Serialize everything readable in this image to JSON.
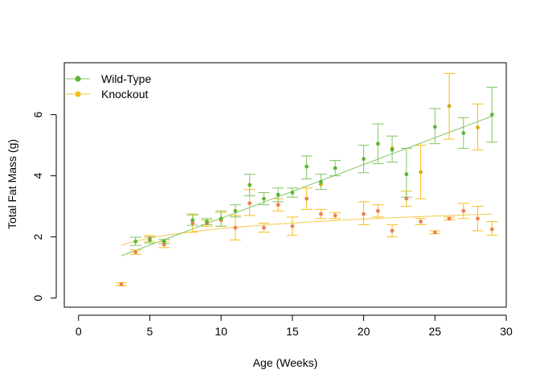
{
  "chart_data": {
    "type": "scatter",
    "title": "",
    "xlabel": "Age (Weeks)",
    "ylabel": "Total Fat Mass (g)",
    "xlim": [
      -1,
      30
    ],
    "ylim": [
      -0.3,
      7.7
    ],
    "x_ticks": [
      0,
      5,
      10,
      15,
      20,
      25,
      30
    ],
    "y_ticks": [
      0,
      2,
      4,
      6
    ],
    "grid": false,
    "legend_position": "top-left",
    "colors": {
      "wild_type": "#5DB535",
      "wild_type_line": "#7FC660",
      "knockout": "#F5BE1C",
      "knockout_line": "#F6C84A",
      "overlap_points": "#F07E50"
    },
    "series": [
      {
        "name": "Wild-Type",
        "marker": "circle",
        "points": [
          {
            "x": 4,
            "y": 1.85,
            "lo": 1.72,
            "hi": 1.99
          },
          {
            "x": 5,
            "y": 1.9,
            "lo": 1.8,
            "hi": 2.0
          },
          {
            "x": 6,
            "y": 1.85,
            "lo": 1.78,
            "hi": 1.92
          },
          {
            "x": 8,
            "y": 2.55,
            "lo": 2.38,
            "hi": 2.72
          },
          {
            "x": 9,
            "y": 2.5,
            "lo": 2.4,
            "hi": 2.6
          },
          {
            "x": 10,
            "y": 2.6,
            "lo": 2.35,
            "hi": 2.85
          },
          {
            "x": 11,
            "y": 2.85,
            "lo": 2.65,
            "hi": 3.05
          },
          {
            "x": 12,
            "y": 3.7,
            "lo": 3.35,
            "hi": 4.05
          },
          {
            "x": 13,
            "y": 3.25,
            "lo": 3.05,
            "hi": 3.45
          },
          {
            "x": 14,
            "y": 3.38,
            "lo": 3.15,
            "hi": 3.6
          },
          {
            "x": 15,
            "y": 3.45,
            "lo": 3.3,
            "hi": 3.6
          },
          {
            "x": 16,
            "y": 4.3,
            "lo": 3.9,
            "hi": 4.65
          },
          {
            "x": 17,
            "y": 3.8,
            "lo": 3.55,
            "hi": 4.05
          },
          {
            "x": 18,
            "y": 4.25,
            "lo": 4.0,
            "hi": 4.5
          },
          {
            "x": 20,
            "y": 4.55,
            "lo": 4.1,
            "hi": 5.0
          },
          {
            "x": 21,
            "y": 5.05,
            "lo": 4.4,
            "hi": 5.7
          },
          {
            "x": 22,
            "y": 4.85,
            "lo": 4.45,
            "hi": 5.3
          },
          {
            "x": 23,
            "y": 4.05,
            "lo": 3.3,
            "hi": 4.9
          },
          {
            "x": 25,
            "y": 5.6,
            "lo": 5.05,
            "hi": 6.2
          },
          {
            "x": 27,
            "y": 5.4,
            "lo": 4.9,
            "hi": 5.9
          },
          {
            "x": 29,
            "y": 6.0,
            "lo": 5.1,
            "hi": 6.9
          }
        ],
        "fit": {
          "type": "linear",
          "x": [
            3,
            29
          ],
          "y": [
            1.38,
            5.95
          ]
        }
      },
      {
        "name": "Knockout",
        "marker": "circle",
        "points": [
          {
            "x": 3,
            "y": 0.45,
            "lo": 0.4,
            "hi": 0.5
          },
          {
            "x": 4,
            "y": 1.5,
            "lo": 1.43,
            "hi": 1.57
          },
          {
            "x": 5,
            "y": 1.95,
            "lo": 1.85,
            "hi": 2.05
          },
          {
            "x": 6,
            "y": 1.75,
            "lo": 1.65,
            "hi": 1.85
          },
          {
            "x": 8,
            "y": 2.45,
            "lo": 2.15,
            "hi": 2.75
          },
          {
            "x": 9,
            "y": 2.45,
            "lo": 2.35,
            "hi": 2.55
          },
          {
            "x": 10,
            "y": 2.55,
            "lo": 2.35,
            "hi": 2.8
          },
          {
            "x": 11,
            "y": 2.3,
            "lo": 1.9,
            "hi": 2.7
          },
          {
            "x": 12,
            "y": 3.1,
            "lo": 2.7,
            "hi": 3.55
          },
          {
            "x": 13,
            "y": 2.3,
            "lo": 2.15,
            "hi": 2.45
          },
          {
            "x": 14,
            "y": 3.05,
            "lo": 2.85,
            "hi": 3.25
          },
          {
            "x": 15,
            "y": 2.35,
            "lo": 2.05,
            "hi": 2.65
          },
          {
            "x": 16,
            "y": 3.25,
            "lo": 2.9,
            "hi": 3.6
          },
          {
            "x": 17,
            "y": 2.75,
            "lo": 2.6,
            "hi": 2.9
          },
          {
            "x": 18,
            "y": 2.7,
            "lo": 2.6,
            "hi": 2.8
          },
          {
            "x": 20,
            "y": 2.75,
            "lo": 2.4,
            "hi": 3.15
          },
          {
            "x": 21,
            "y": 2.85,
            "lo": 2.65,
            "hi": 3.05
          },
          {
            "x": 22,
            "y": 2.2,
            "lo": 2.0,
            "hi": 2.4
          },
          {
            "x": 23,
            "y": 3.25,
            "lo": 3.0,
            "hi": 3.5
          },
          {
            "x": 24,
            "y": 2.5,
            "lo": 2.4,
            "hi": 2.6
          },
          {
            "x": 25,
            "y": 2.15,
            "lo": 2.1,
            "hi": 2.2
          },
          {
            "x": 26,
            "y": 2.6,
            "lo": 2.55,
            "hi": 2.65
          },
          {
            "x": 27,
            "y": 2.85,
            "lo": 2.6,
            "hi": 3.1
          },
          {
            "x": 28,
            "y": 2.6,
            "lo": 2.2,
            "hi": 3.0
          },
          {
            "x": 29,
            "y": 2.25,
            "lo": 2.05,
            "hi": 2.5
          }
        ],
        "extra_points": [
          {
            "x": 17,
            "y": 3.72
          },
          {
            "x": 22,
            "y": 4.9
          },
          {
            "x": 24,
            "y": 4.12,
            "lo": 3.25,
            "hi": 5.0
          },
          {
            "x": 26,
            "y": 6.28,
            "lo": 5.2,
            "hi": 7.35
          },
          {
            "x": 28,
            "y": 5.58,
            "lo": 4.85,
            "hi": 6.35
          }
        ],
        "fit": {
          "type": "log",
          "x": [
            3,
            29
          ],
          "y": [
            1.73,
            2.75
          ]
        }
      }
    ]
  }
}
